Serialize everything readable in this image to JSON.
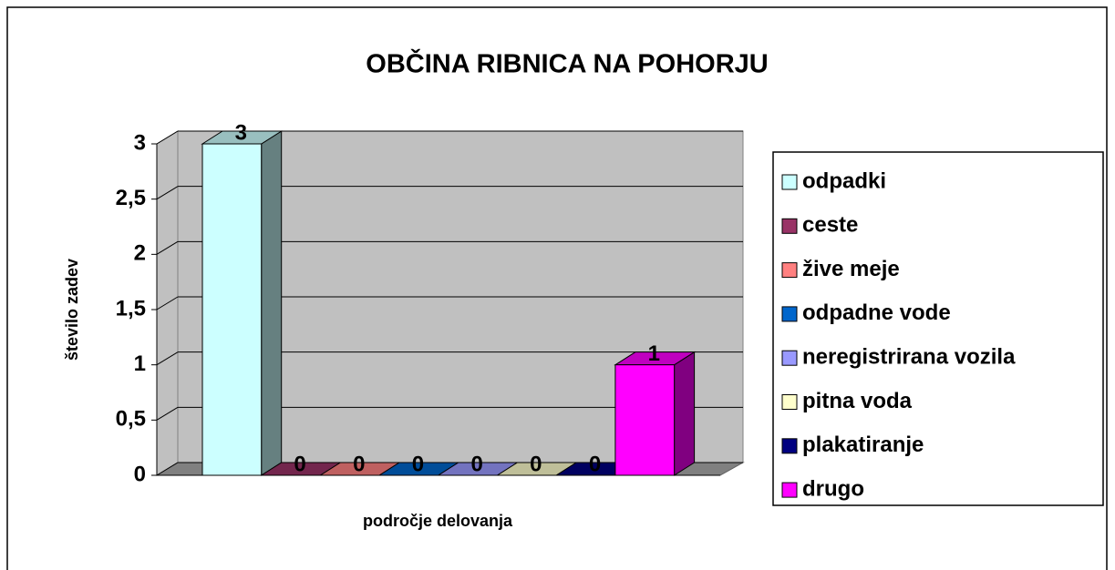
{
  "chart_data": {
    "type": "bar3d",
    "title": "OBČINA RIBNICA NA POHORJU",
    "x_label": "področje delovanja",
    "y_label": "število zadev",
    "categories": [
      null
    ],
    "series": [
      {
        "name": "odpadki",
        "color": "#ccffff",
        "values": [
          3
        ]
      },
      {
        "name": "ceste",
        "color": "#993366",
        "values": [
          0
        ]
      },
      {
        "name": "žive meje",
        "color": "#ff8080",
        "values": [
          0
        ]
      },
      {
        "name": "odpadne vode",
        "color": "#0066cc",
        "values": [
          0
        ]
      },
      {
        "name": "neregistrirana vozila",
        "color": "#9999ff",
        "values": [
          0
        ]
      },
      {
        "name": "pitna voda",
        "color": "#ffffcc",
        "values": [
          0
        ]
      },
      {
        "name": "plakatiranje",
        "color": "#000080",
        "values": [
          0
        ]
      },
      {
        "name": "drugo",
        "color": "#ff00ff",
        "values": [
          1
        ]
      }
    ],
    "ylim": [
      0,
      3
    ],
    "yticks": [
      0,
      {
        "value": 0.5,
        "label": "0,5"
      },
      1,
      {
        "value": 1.5,
        "label": "1,5"
      },
      2,
      {
        "value": 2.5,
        "label": "2,5"
      },
      3
    ],
    "grid": true,
    "legend": "right"
  }
}
